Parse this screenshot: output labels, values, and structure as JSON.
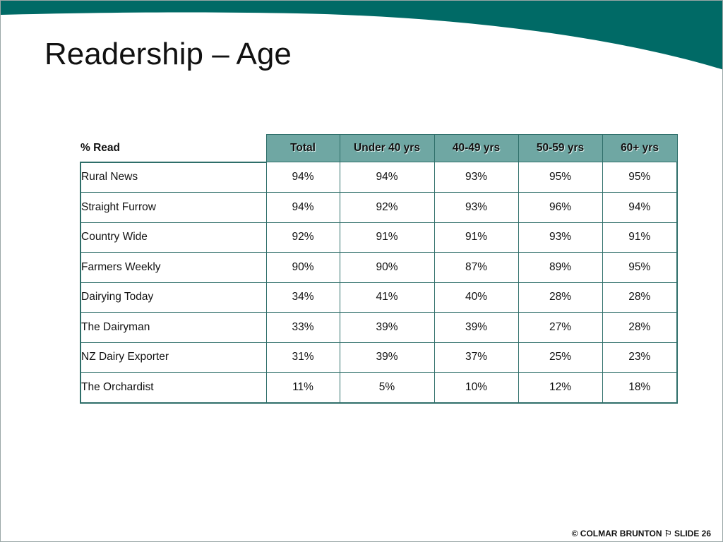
{
  "slide": {
    "title": "Readership – Age",
    "footer": "© COLMAR BRUNTON ⚐ SLIDE 26",
    "accent_color": "#006a66"
  },
  "table": {
    "corner_label": "% Read",
    "columns": [
      "Total",
      "Under 40 yrs",
      "40-49 yrs",
      "50-59 yrs",
      "60+ yrs"
    ],
    "rows": [
      {
        "label": "Rural News",
        "values": [
          "94%",
          "94%",
          "93%",
          "95%",
          "95%"
        ]
      },
      {
        "label": "Straight Furrow",
        "values": [
          "94%",
          "92%",
          "93%",
          "96%",
          "94%"
        ]
      },
      {
        "label": "Country Wide",
        "values": [
          "92%",
          "91%",
          "91%",
          "93%",
          "91%"
        ]
      },
      {
        "label": "Farmers Weekly",
        "values": [
          "90%",
          "90%",
          "87%",
          "89%",
          "95%"
        ]
      },
      {
        "label": "Dairying Today",
        "values": [
          "34%",
          "41%",
          "40%",
          "28%",
          "28%"
        ]
      },
      {
        "label": "The Dairyman",
        "values": [
          "33%",
          "39%",
          "39%",
          "27%",
          "28%"
        ]
      },
      {
        "label": "NZ Dairy Exporter",
        "values": [
          "31%",
          "39%",
          "37%",
          "25%",
          "23%"
        ]
      },
      {
        "label": "The Orchardist",
        "values": [
          "11%",
          "5%",
          "10%",
          "12%",
          "18%"
        ]
      }
    ]
  }
}
